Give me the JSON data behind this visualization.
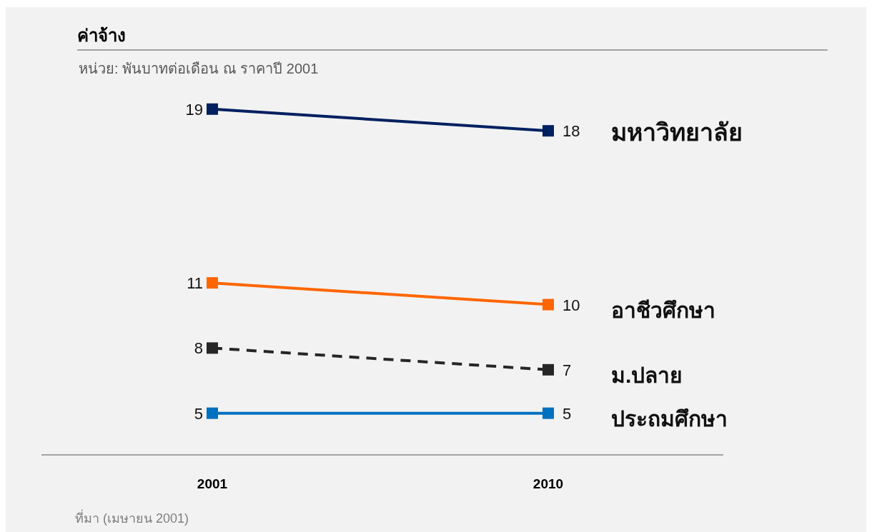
{
  "chart_data": {
    "type": "line",
    "title": "ค่าจ้าง",
    "subtitle": "หน่วย: พันบาทต่อเดือน ณ ราคาปี 2001",
    "categories": [
      "2001",
      "2010"
    ],
    "series": [
      {
        "name": "มหาวิทยาลัย",
        "color": "#002060",
        "values": [
          19,
          18
        ]
      },
      {
        "name": "อาชีวศึกษา",
        "color": "#ff6600",
        "values": [
          11,
          10
        ]
      },
      {
        "name": "ม.ปลาย",
        "color": "#262626",
        "values": [
          8,
          7
        ],
        "line_style": "dashed"
      },
      {
        "name": "ประถมศึกษา",
        "color": "#0070c0",
        "values": [
          5,
          5
        ]
      }
    ],
    "data_labels": true,
    "marker": "square",
    "tick_labels": "x",
    "annotations": [
      "ที่มา (เมษายน 2001)"
    ]
  }
}
